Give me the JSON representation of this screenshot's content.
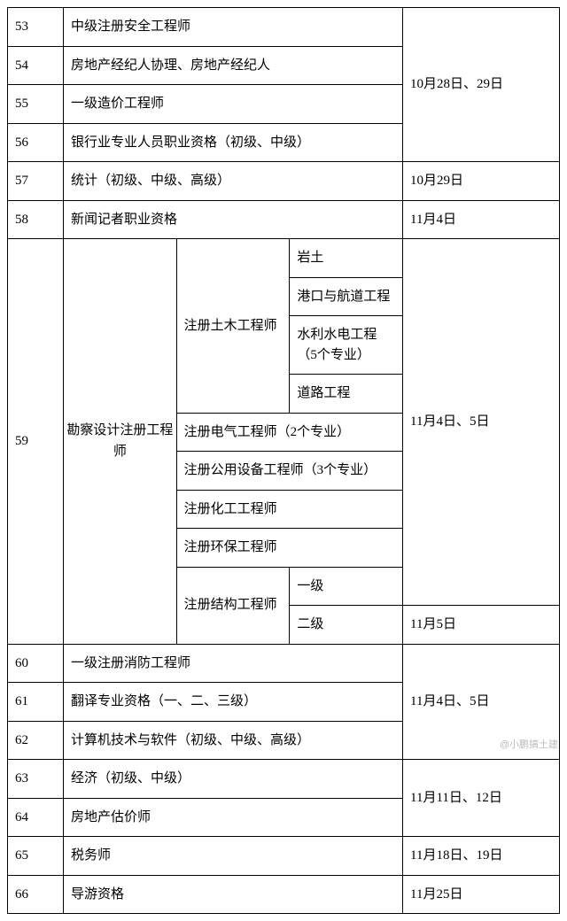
{
  "rows": {
    "r53": {
      "num": "53",
      "name": "中级注册安全工程师"
    },
    "r54": {
      "num": "54",
      "name": "房地产经纪人协理、房地产经纪人"
    },
    "r55": {
      "num": "55",
      "name": "一级造价工程师"
    },
    "r56": {
      "num": "56",
      "name": "银行业专业人员职业资格（初级、中级）"
    },
    "r57": {
      "num": "57",
      "name": "统计（初级、中级、高级）",
      "date": "10月29日"
    },
    "r58": {
      "num": "58",
      "name": "新闻记者职业资格",
      "date": "11月4日"
    },
    "r59": {
      "num": "59"
    },
    "r60": {
      "num": "60",
      "name": "一级注册消防工程师"
    },
    "r61": {
      "num": "61",
      "name": "翻译专业资格（一、二、三级）"
    },
    "r62": {
      "num": "62",
      "name": "计算机技术与软件（初级、中级、高级）"
    },
    "r63": {
      "num": "63",
      "name": "经济（初级、中级）"
    },
    "r64": {
      "num": "64",
      "name": "房地产估价师"
    },
    "r65": {
      "num": "65",
      "name": "税务师",
      "date": "11月18日、19日"
    },
    "r66": {
      "num": "66",
      "name": "导游资格",
      "date": "11月25日"
    }
  },
  "dates": {
    "d_oct28": "10月28日、29日",
    "d_nov4_5": "11月4日、5日",
    "d_nov5": "11月5日",
    "d_nov4_5b": "11月4日、5日",
    "d_nov11": "11月11日、12日"
  },
  "r59": {
    "vert": "勘察设计注册工程师",
    "civil": "注册土木工程师",
    "civil_sub": {
      "a": "岩土",
      "b": "港口与航道工程",
      "c": "水利水电工程（5个专业）",
      "d": "道路工程"
    },
    "elec": "注册电气工程师（2个专业）",
    "equip": "注册公用设备工程师（3个专业）",
    "chem": "注册化工工程师",
    "env": "注册环保工程师",
    "struct": "注册结构工程师",
    "struct_sub": {
      "a": "一级",
      "b": "二级"
    }
  },
  "watermark": "@小鹏搞土建"
}
